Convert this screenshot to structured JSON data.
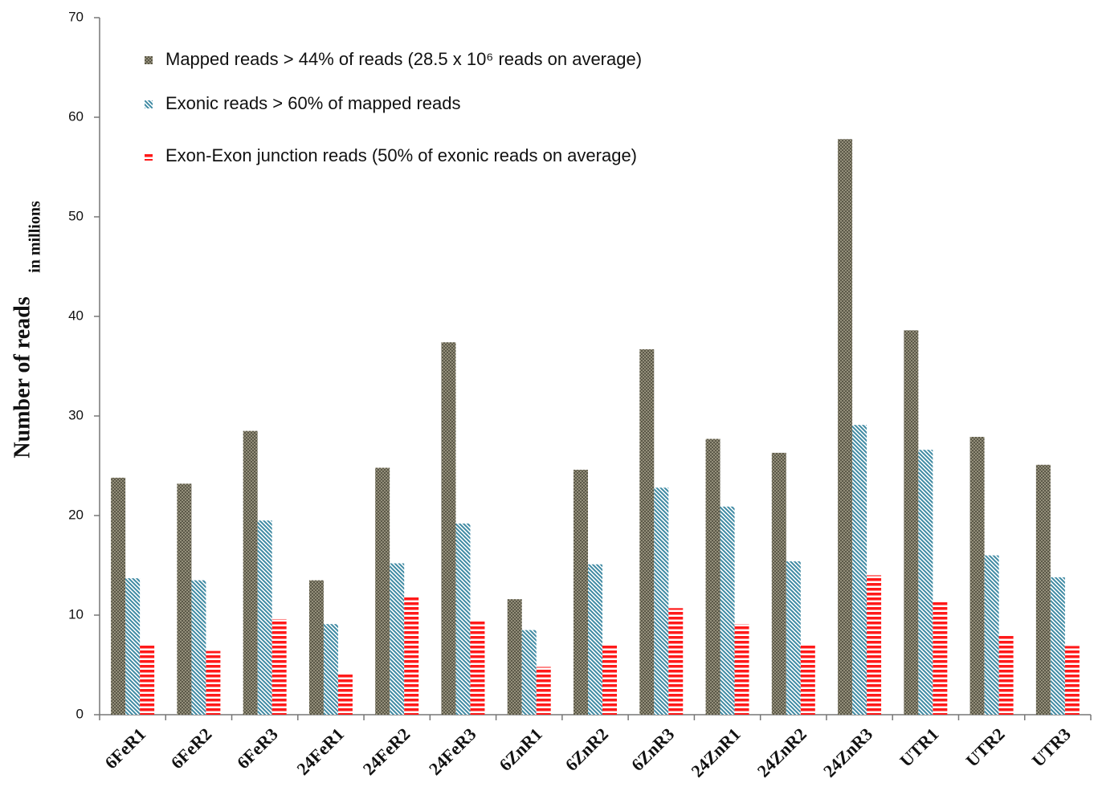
{
  "chart_data": {
    "type": "bar",
    "y_label": "Number of reads",
    "y_label_sub": "in millions",
    "categories": [
      "6FeR1",
      "6FeR2",
      "6FeR3",
      "24FeR1",
      "24FeR2",
      "24FeR3",
      "6ZnR1",
      "6ZnR2",
      "6ZnR3",
      "24ZnR1",
      "24ZnR2",
      "24ZnR3",
      "UTR1",
      "UTR2",
      "UTR3"
    ],
    "series": [
      {
        "name": "Mapped reads > 44% of reads (28.5 x 10⁶ reads on average)",
        "color": "#5b5848",
        "values": [
          23.8,
          23.2,
          28.5,
          13.5,
          24.8,
          37.4,
          11.6,
          24.6,
          36.7,
          27.7,
          26.3,
          57.8,
          38.6,
          27.9,
          25.1
        ]
      },
      {
        "name": "Exonic reads > 60% of mapped reads",
        "color": "#3f8aa3",
        "values": [
          13.7,
          13.5,
          19.5,
          9.1,
          15.2,
          19.2,
          8.5,
          15.1,
          22.8,
          20.9,
          15.4,
          29.1,
          26.6,
          16.0,
          13.8
        ]
      },
      {
        "name": "Exon-Exon junction reads (50% of exonic reads on average)",
        "color": "#ff1a1a",
        "values": [
          7.0,
          6.4,
          9.6,
          4.2,
          11.8,
          9.5,
          4.8,
          7.0,
          10.7,
          9.1,
          7.0,
          14.0,
          11.3,
          8.0,
          6.9
        ]
      }
    ],
    "ylim": [
      0,
      70
    ],
    "yticks": [
      0,
      10,
      20,
      30,
      40,
      50,
      60,
      70
    ],
    "grid": false
  }
}
